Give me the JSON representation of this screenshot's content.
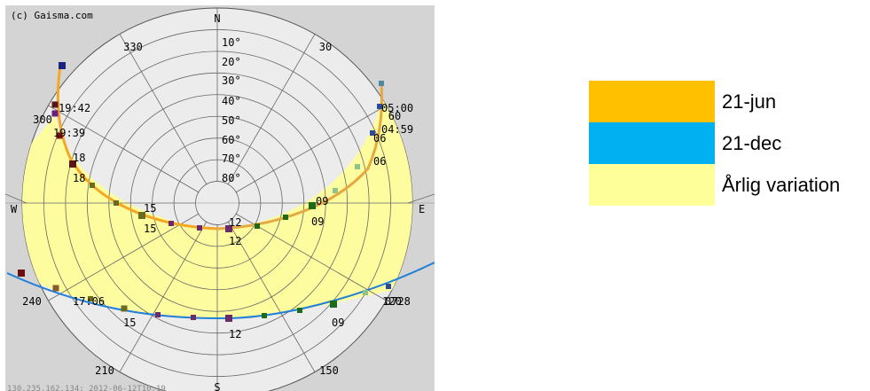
{
  "copyright": "(c) Gaisma.com",
  "footer_text": "130.235.162.134; 2012-06-12T10:19",
  "footer_suffix": "S",
  "compass": {
    "north": "N",
    "east": "E",
    "west": "W"
  },
  "azimuth_labels": [
    "330",
    "30",
    "300",
    "60",
    "240",
    "120",
    "210",
    "150"
  ],
  "altitude_labels": [
    "10°",
    "20°",
    "30°",
    "40°",
    "50°",
    "60°",
    "70°",
    "80°"
  ],
  "sun_paths": {
    "summer": {
      "color": "#f5a623",
      "labels": [
        "19:42",
        "19:39",
        "18",
        "18",
        "15",
        "15",
        "12",
        "12",
        "09",
        "09",
        "06",
        "06",
        "05:00",
        "04:59"
      ]
    },
    "winter": {
      "color": "#1f7fd9",
      "labels": [
        "17:06",
        "15",
        "12",
        "09",
        "0728"
      ]
    },
    "annual_fill_color": "#fdfd9f"
  },
  "legend": [
    {
      "label": "21-jun",
      "color": "#ffc000"
    },
    {
      "label": "21-dec",
      "color": "#00b0f0"
    },
    {
      "label": "Årlig variation",
      "color": "#ffff99"
    }
  ]
}
